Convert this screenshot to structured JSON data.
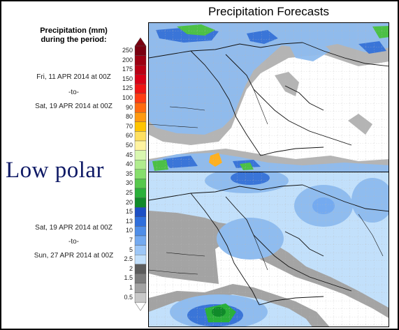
{
  "title": "Precipitation Forecasts",
  "legend": {
    "title_line1": "Precipitation (mm)",
    "title_line2": "during the period:",
    "scale": [
      {
        "value": "250",
        "color": "#7a0010"
      },
      {
        "value": "200",
        "color": "#9c0012"
      },
      {
        "value": "175",
        "color": "#b90014"
      },
      {
        "value": "150",
        "color": "#d60016"
      },
      {
        "value": "125",
        "color": "#ee1414"
      },
      {
        "value": "100",
        "color": "#ff3c14"
      },
      {
        "value": "90",
        "color": "#ff6a10"
      },
      {
        "value": "80",
        "color": "#ff9a10"
      },
      {
        "value": "70",
        "color": "#ffc400"
      },
      {
        "value": "60",
        "color": "#ffe060"
      },
      {
        "value": "50",
        "color": "#fff3a0"
      },
      {
        "value": "45",
        "color": "#d9f7b0"
      },
      {
        "value": "40",
        "color": "#b0ec8e"
      },
      {
        "value": "35",
        "color": "#86de6c"
      },
      {
        "value": "30",
        "color": "#56c84c"
      },
      {
        "value": "25",
        "color": "#2ab03a"
      },
      {
        "value": "20",
        "color": "#108a2a"
      },
      {
        "value": "15",
        "color": "#1c4fc4"
      },
      {
        "value": "13",
        "color": "#2f6fdc"
      },
      {
        "value": "10",
        "color": "#4f8ee8"
      },
      {
        "value": "7",
        "color": "#74aaf0"
      },
      {
        "value": "5",
        "color": "#9dc7f7"
      },
      {
        "value": "2.5",
        "color": "#c2e0fb"
      },
      {
        "value": "2",
        "color": "#5c5c5c"
      },
      {
        "value": "1.5",
        "color": "#7c7c7c"
      },
      {
        "value": "1",
        "color": "#a2a2a2"
      },
      {
        "value": "0.5",
        "color": "#c8c8c8"
      }
    ]
  },
  "periods": [
    {
      "start": "Fri, 11 APR 2014 at 00Z",
      "sep": "-to-",
      "end": "Sat, 19 APR 2014 at 00Z"
    },
    {
      "start": "Sat, 19 APR 2014 at 00Z",
      "sep": "-to-",
      "end": "Sun, 27 APR 2014 at 00Z"
    }
  ],
  "annotation": "Low polar"
}
